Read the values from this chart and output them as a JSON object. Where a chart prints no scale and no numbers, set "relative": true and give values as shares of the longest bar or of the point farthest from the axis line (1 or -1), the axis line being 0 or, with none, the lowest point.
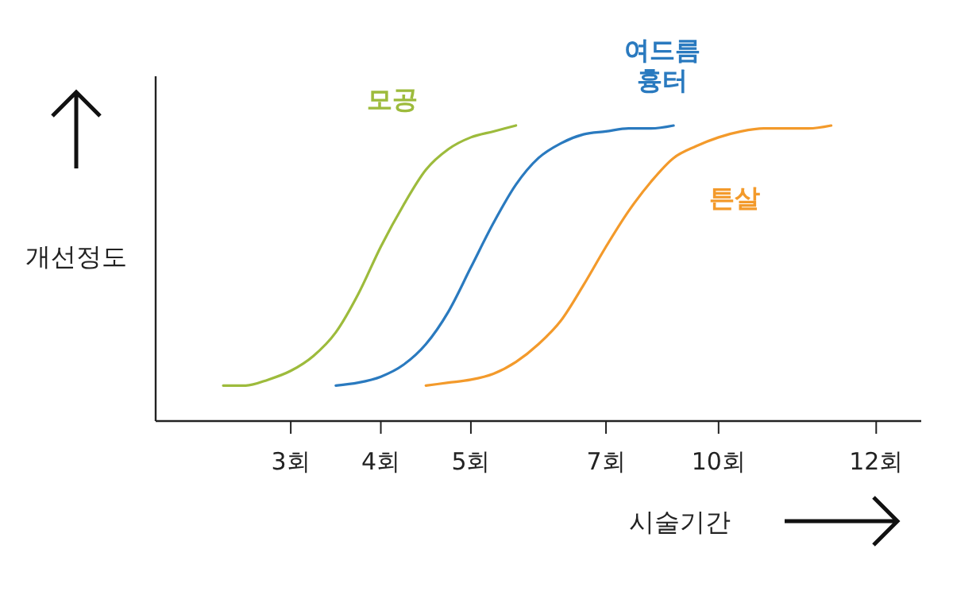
{
  "chart_data": {
    "type": "line",
    "relative": true,
    "xlabel": "시술기간",
    "ylabel": "개선정도",
    "categories": [
      null,
      null,
      null,
      null,
      null,
      null,
      "3회",
      null,
      null,
      null,
      "4회",
      null,
      null,
      null,
      "5회",
      null,
      null,
      null,
      null,
      null,
      "7회",
      null,
      null,
      null,
      null,
      "10회",
      null,
      null,
      null,
      null,
      null,
      null,
      "12회",
      null,
      null
    ],
    "marker": "none",
    "line_style": "solid",
    "grid": false,
    "legend": false,
    "series": [
      {
        "name": "모공",
        "color": "#9dbb3c",
        "values": [
          null,
          null,
          null,
          0.12,
          0.12,
          0.14,
          0.17,
          0.22,
          0.3,
          0.43,
          0.59,
          0.73,
          0.85,
          0.92,
          0.96,
          0.98,
          1,
          null,
          null,
          null,
          null,
          null,
          null,
          null,
          null,
          null,
          null,
          null,
          null,
          null,
          null,
          null,
          null,
          null,
          null
        ]
      },
      {
        "name": "여드름 흉터",
        "color": "#2a7abf",
        "values": [
          null,
          null,
          null,
          null,
          null,
          null,
          null,
          null,
          0.12,
          0.13,
          0.15,
          0.19,
          0.26,
          0.37,
          0.52,
          0.67,
          0.8,
          0.89,
          0.94,
          0.97,
          0.98,
          0.99,
          0.99,
          1,
          null,
          null,
          null,
          null,
          null,
          null,
          null,
          null,
          null,
          null,
          null
        ]
      },
      {
        "name": "튼살",
        "color": "#f39a2b",
        "values": [
          null,
          null,
          null,
          null,
          null,
          null,
          null,
          null,
          null,
          null,
          null,
          null,
          0.12,
          0.13,
          0.14,
          0.16,
          0.2,
          0.26,
          0.34,
          0.46,
          0.59,
          0.71,
          0.81,
          0.89,
          0.93,
          0.96,
          0.98,
          0.99,
          0.99,
          0.99,
          1,
          null,
          null,
          null,
          null
        ]
      }
    ]
  }
}
